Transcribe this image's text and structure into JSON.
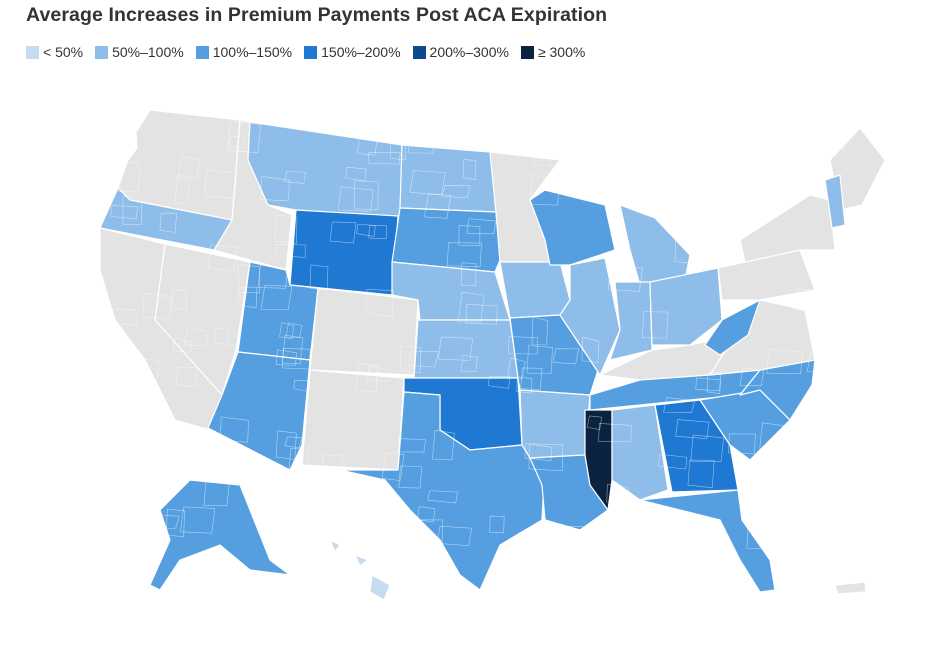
{
  "title": "Average Increases in Premium Payments Post ACA Expiration",
  "legend": [
    {
      "label": "< 50%",
      "color": "#c6dbef"
    },
    {
      "label": "50%–100%",
      "color": "#8dbde8"
    },
    {
      "label": "100%–150%",
      "color": "#559fe0"
    },
    {
      "label": "150%–200%",
      "color": "#1f78d1"
    },
    {
      "label": "200%–300%",
      "color": "#0b4a8b"
    },
    {
      "label": "≥ 300%",
      "color": "#0a2340"
    }
  ],
  "no_data_color": "#e3e3e3",
  "regions": [
    {
      "state": "Washington",
      "category": "none"
    },
    {
      "state": "Oregon",
      "category": "50%–100%"
    },
    {
      "state": "California",
      "category": "none"
    },
    {
      "state": "Idaho",
      "category": "none"
    },
    {
      "state": "Nevada",
      "category": "none"
    },
    {
      "state": "Montana",
      "category": "50%–100%"
    },
    {
      "state": "Wyoming",
      "category": "150%–200%"
    },
    {
      "state": "Utah",
      "category": "100%–150%"
    },
    {
      "state": "Arizona",
      "category": "100%–150%"
    },
    {
      "state": "Colorado",
      "category": "none"
    },
    {
      "state": "New Mexico",
      "category": "none"
    },
    {
      "state": "North Dakota",
      "category": "50%–100%"
    },
    {
      "state": "South Dakota",
      "category": "100%–150%"
    },
    {
      "state": "Nebraska",
      "category": "50%–100%"
    },
    {
      "state": "Kansas",
      "category": "50%–100%"
    },
    {
      "state": "Oklahoma",
      "category": "150%–200%"
    },
    {
      "state": "Texas",
      "category": "100%–150%"
    },
    {
      "state": "Minnesota",
      "category": "none"
    },
    {
      "state": "Iowa",
      "category": "50%–100%"
    },
    {
      "state": "Missouri",
      "category": "100%–150%"
    },
    {
      "state": "Arkansas",
      "category": "50%–100%"
    },
    {
      "state": "Louisiana",
      "category": "100%–150%"
    },
    {
      "state": "Wisconsin",
      "category": "100%–150%"
    },
    {
      "state": "Illinois",
      "category": "50%–100%"
    },
    {
      "state": "Michigan",
      "category": "50%–100%"
    },
    {
      "state": "Indiana",
      "category": "50%–100%"
    },
    {
      "state": "Ohio",
      "category": "50%–100%"
    },
    {
      "state": "Kentucky",
      "category": "none"
    },
    {
      "state": "Tennessee",
      "category": "100%–150%"
    },
    {
      "state": "Mississippi",
      "category": "≥ 300%"
    },
    {
      "state": "Alabama",
      "category": "50%–100%"
    },
    {
      "state": "Georgia",
      "category": "150%–200%"
    },
    {
      "state": "Florida",
      "category": "100%–150%"
    },
    {
      "state": "South Carolina",
      "category": "100%–150%"
    },
    {
      "state": "North Carolina",
      "category": "100%–150%"
    },
    {
      "state": "Virginia",
      "category": "none"
    },
    {
      "state": "West Virginia",
      "category": "100%–150%"
    },
    {
      "state": "Pennsylvania",
      "category": "none"
    },
    {
      "state": "New York",
      "category": "none"
    },
    {
      "state": "Maine",
      "category": "none"
    },
    {
      "state": "New Hampshire",
      "category": "50%–100%"
    },
    {
      "state": "Alaska",
      "category": "100%–150%"
    },
    {
      "state": "Hawaii",
      "category": "< 50%"
    },
    {
      "state": "Puerto Rico",
      "category": "none"
    }
  ]
}
